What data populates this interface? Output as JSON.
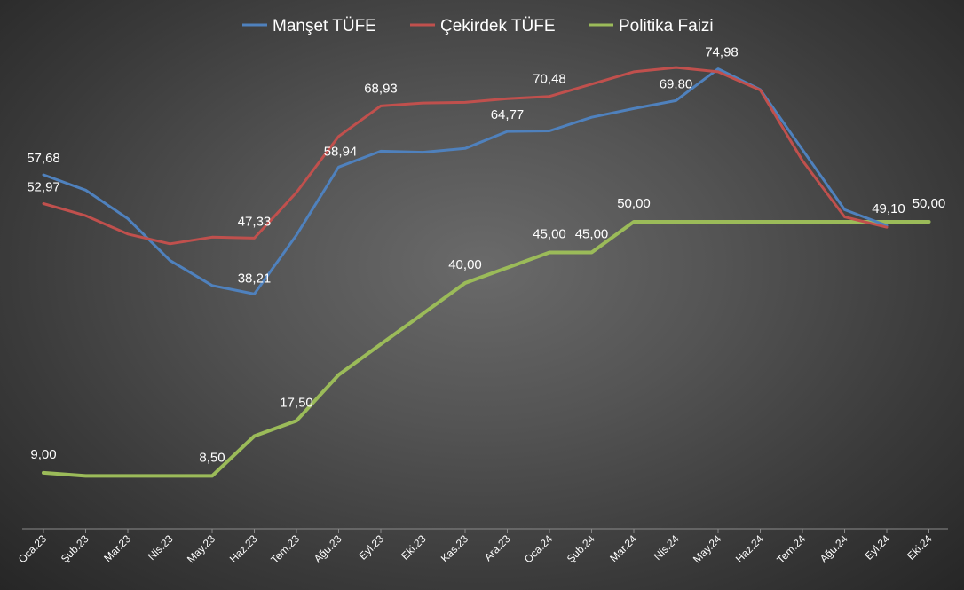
{
  "chart_data": {
    "type": "line",
    "categories": [
      "Oca.23",
      "Şub.23",
      "Mar.23",
      "Nis.23",
      "May.23",
      "Haz.23",
      "Tem.23",
      "Ağu.23",
      "Eyl.23",
      "Eki.23",
      "Kas.23",
      "Ara.23",
      "Oca.24",
      "Şub.24",
      "Mar.24",
      "Nis.24",
      "May.24",
      "Haz.24",
      "Tem.24",
      "Ağu.24",
      "Eyl.24",
      "Eki.24"
    ],
    "series": [
      {
        "name": "Manşet TÜFE",
        "color": "#4f81bd",
        "values": [
          57.68,
          55.18,
          50.51,
          43.68,
          39.59,
          38.21,
          47.83,
          58.94,
          61.53,
          61.36,
          61.98,
          64.77,
          64.86,
          67.07,
          68.5,
          69.8,
          74.98,
          71.6,
          61.78,
          51.97,
          49.38,
          null
        ],
        "labels": [
          {
            "index": 0,
            "text": "57,68",
            "pos": "above"
          },
          {
            "index": 5,
            "text": "38,21",
            "pos": "above"
          },
          {
            "index": 7,
            "text": "58,94",
            "pos": "above"
          },
          {
            "index": 11,
            "text": "64,77",
            "pos": "above"
          },
          {
            "index": 15,
            "text": "69,80",
            "pos": "above"
          },
          {
            "index": 16,
            "text": "74,98",
            "pos": "above"
          }
        ]
      },
      {
        "name": "Çekirdek TÜFE",
        "color": "#c0504d",
        "values": [
          52.97,
          51.0,
          48.0,
          46.4,
          47.5,
          47.33,
          54.8,
          63.96,
          68.93,
          69.4,
          69.5,
          70.1,
          70.48,
          72.5,
          74.5,
          75.2,
          74.5,
          71.5,
          60.0,
          50.8,
          49.1,
          null
        ],
        "labels": [
          {
            "index": 0,
            "text": "52,97",
            "pos": "above"
          },
          {
            "index": 5,
            "text": "47,33",
            "pos": "above"
          },
          {
            "index": 8,
            "text": "68,93",
            "pos": "above"
          },
          {
            "index": 12,
            "text": "70,48",
            "pos": "above"
          },
          {
            "index": 20,
            "text": "49,10",
            "pos": "above"
          }
        ]
      },
      {
        "name": "Politika Faizi",
        "color": "#9bbb59",
        "values": [
          9.0,
          8.5,
          8.5,
          8.5,
          8.5,
          15.0,
          17.5,
          25.0,
          30.0,
          35.0,
          40.0,
          42.5,
          45.0,
          45.0,
          50.0,
          50.0,
          50.0,
          50.0,
          50.0,
          50.0,
          50.0,
          50.0
        ],
        "labels": [
          {
            "index": 0,
            "text": "9,00",
            "pos": "above"
          },
          {
            "index": 4,
            "text": "8,50",
            "pos": "above"
          },
          {
            "index": 6,
            "text": "17,50",
            "pos": "above"
          },
          {
            "index": 10,
            "text": "40,00",
            "pos": "above"
          },
          {
            "index": 12,
            "text": "45,00",
            "pos": "above"
          },
          {
            "index": 13,
            "text": "45,00",
            "pos": "above"
          },
          {
            "index": 14,
            "text": "50,00",
            "pos": "above"
          },
          {
            "index": 21,
            "text": "50,00",
            "pos": "above"
          }
        ]
      }
    ],
    "title": "",
    "xlabel": "",
    "ylabel": "",
    "ylim": [
      0,
      80
    ],
    "grid": false,
    "legend": "top-center"
  }
}
